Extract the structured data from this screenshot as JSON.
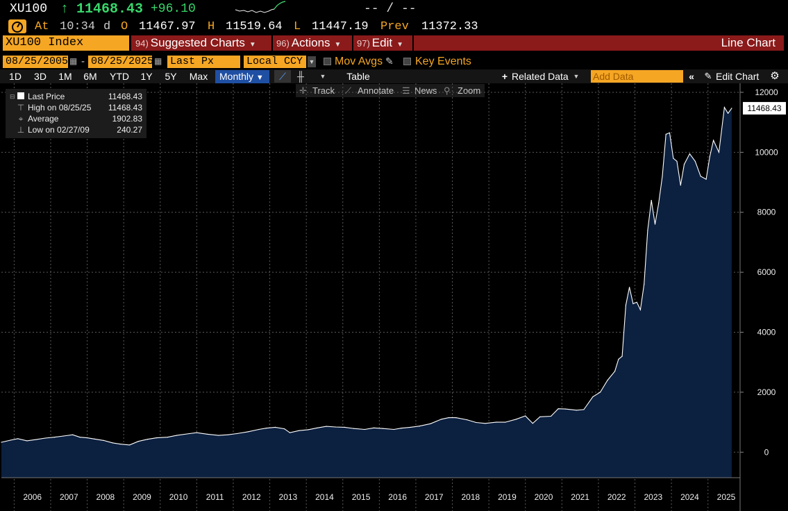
{
  "quote": {
    "ticker": "XU100",
    "last": "11468.43",
    "change": "+96.10",
    "dash": "-- / --"
  },
  "stats": {
    "at_label": "At",
    "time": "10:34",
    "d_label": "d",
    "open_label": "O",
    "open": "11467.97",
    "high_label": "H",
    "high": "11519.64",
    "low_label": "L",
    "low": "11447.19",
    "prev_label": "Prev",
    "prev": "11372.33"
  },
  "titlebar": {
    "security": "XU100 Index",
    "menus": [
      {
        "num": "94)",
        "label": "Suggested Charts"
      },
      {
        "num": "96)",
        "label": "Actions"
      },
      {
        "num": "97)",
        "label": "Edit"
      }
    ],
    "chart_type": "Line Chart"
  },
  "params": {
    "start_date": "08/25/2005",
    "end_date": "08/25/2025",
    "separator": "-",
    "field": "Last Px",
    "currency": "Local CCY",
    "mov_avgs": "Mov Avgs",
    "key_events": "Key Events"
  },
  "toolbar": {
    "ranges": [
      "1D",
      "3D",
      "1M",
      "6M",
      "YTD",
      "1Y",
      "5Y",
      "Max"
    ],
    "period": "Monthly",
    "table": "Table",
    "related_data": "Related Data",
    "add_data_placeholder": "Add Data",
    "edit_chart": "Edit Chart"
  },
  "subtoolbar": {
    "track": "Track",
    "annotate": "Annotate",
    "news": "News",
    "zoom": "Zoom"
  },
  "legend": {
    "rows": [
      {
        "label": "Last Price",
        "value": "11468.43"
      },
      {
        "label": "High on 08/25/25",
        "value": "11468.43"
      },
      {
        "label": "Average",
        "value": "1902.83"
      },
      {
        "label": "Low on 02/27/09",
        "value": "240.27"
      }
    ]
  },
  "colors": {
    "accent_orange": "#f5a623",
    "up_green": "#38d66b",
    "menu_red": "#8b1a1a",
    "area_fill": "#0c2040",
    "line": "#ffffff"
  },
  "chart_data": {
    "type": "area",
    "last_label": "11468.43",
    "y_ticks": [
      0,
      2000,
      4000,
      6000,
      8000,
      10000,
      12000
    ],
    "ylim": [
      -850,
      12300
    ],
    "x_labels": [
      "2006",
      "2007",
      "2008",
      "2009",
      "2010",
      "2011",
      "2012",
      "2013",
      "2014",
      "2015",
      "2016",
      "2017",
      "2018",
      "2019",
      "2020",
      "2021",
      "2022",
      "2023",
      "2024",
      "2025"
    ],
    "x": [
      2005.65,
      2005.9,
      2006.1,
      2006.35,
      2006.6,
      2006.85,
      2007.1,
      2007.35,
      2007.6,
      2007.8,
      2008.0,
      2008.2,
      2008.45,
      2008.7,
      2008.9,
      2009.16,
      2009.4,
      2009.65,
      2009.9,
      2010.2,
      2010.45,
      2010.8,
      2011.0,
      2011.3,
      2011.6,
      2011.85,
      2012.1,
      2012.4,
      2012.7,
      2012.9,
      2013.15,
      2013.4,
      2013.55,
      2013.8,
      2014.05,
      2014.3,
      2014.55,
      2014.8,
      2015.05,
      2015.3,
      2015.6,
      2015.85,
      2016.1,
      2016.4,
      2016.6,
      2016.85,
      2017.1,
      2017.4,
      2017.7,
      2017.9,
      2018.1,
      2018.4,
      2018.65,
      2018.9,
      2019.2,
      2019.45,
      2019.75,
      2020.0,
      2020.2,
      2020.4,
      2020.7,
      2020.9,
      2021.1,
      2021.4,
      2021.6,
      2021.85,
      2022.05,
      2022.25,
      2022.45,
      2022.55,
      2022.65,
      2022.75,
      2022.85,
      2022.95,
      2023.05,
      2023.15,
      2023.25,
      2023.35,
      2023.45,
      2023.55,
      2023.65,
      2023.75,
      2023.85,
      2023.95,
      2024.05,
      2024.15,
      2024.25,
      2024.35,
      2024.5,
      2024.65,
      2024.8,
      2024.95,
      2025.05,
      2025.15,
      2025.3,
      2025.45,
      2025.55,
      2025.65
    ],
    "values": [
      330,
      400,
      450,
      380,
      420,
      470,
      500,
      540,
      580,
      500,
      480,
      440,
      390,
      310,
      270,
      240,
      360,
      430,
      480,
      500,
      560,
      620,
      650,
      600,
      560,
      580,
      620,
      680,
      760,
      800,
      830,
      780,
      650,
      720,
      750,
      810,
      860,
      840,
      830,
      790,
      760,
      810,
      790,
      760,
      800,
      830,
      870,
      950,
      1100,
      1150,
      1150,
      1080,
      990,
      960,
      1000,
      1000,
      1100,
      1210,
      960,
      1180,
      1200,
      1450,
      1440,
      1400,
      1420,
      1850,
      2000,
      2400,
      2700,
      3100,
      3200,
      4900,
      5500,
      4950,
      5000,
      4750,
      5600,
      7400,
      8400,
      7600,
      8300,
      9200,
      10600,
      10650,
      9800,
      9700,
      8900,
      9600,
      9950,
      9700,
      9200,
      9100,
      9850,
      10400,
      10000,
      11500,
      11300,
      11468.43
    ]
  }
}
